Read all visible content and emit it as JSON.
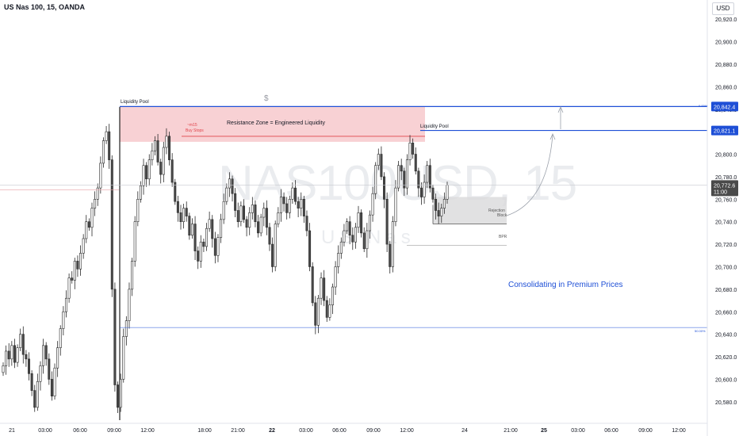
{
  "header": {
    "symbol_title": "US Nas 100, 15, OANDA",
    "currency": "USD"
  },
  "watermark": {
    "main": "NAS100USD, 15",
    "sub": "US Nas"
  },
  "annotations": {
    "liquidity_pool_left": "Liquidity Pool",
    "liquidity_pool_right": "Liquidity Pool",
    "resistance_zone": "Resistance Zone = Engineered Liquidity",
    "dollar_marker": "$",
    "m15_label": "~m15",
    "buy_stops": "Buy Stops",
    "rejection_block_1": "Rejection",
    "rejection_block_2": "Block",
    "bpr": "BPR",
    "consolidating": "Consolidating in Premium Prices",
    "fib_top": "0.00%",
    "fib_mid": "50.00%"
  },
  "colors": {
    "up": "#ffffff",
    "down": "#4a4a4a",
    "wick": "#2a2a2a",
    "zone_fill": "#f7c9cd",
    "level_blue": "#1e4fd6",
    "consolidating_text": "#1e4fd6",
    "price_tag_bg": "#4a4a4a"
  },
  "chart_data": {
    "type": "candlestick",
    "title": "",
    "ylim": [
      20570,
      20930
    ],
    "y_ticks": [
      "20,920.0",
      "20,900.0",
      "20,880.0",
      "20,860.0",
      "20,840.0",
      "20,820.0",
      "20,800.0",
      "20,780.0",
      "20,760.0",
      "20,740.0",
      "20,720.0",
      "20,700.0",
      "20,680.0",
      "20,660.0",
      "20,640.0",
      "20,620.0",
      "20,600.0",
      "20,580.0"
    ],
    "y_tick_values": [
      20920,
      20900,
      20880,
      20860,
      20840,
      20820,
      20800,
      20780,
      20760,
      20740,
      20720,
      20700,
      20680,
      20660,
      20640,
      20620,
      20600,
      20580
    ],
    "x_ticks": [
      "21",
      "03:00",
      "06:00",
      "09:00",
      "12:00",
      "18:00",
      "21:00",
      "22",
      "03:00",
      "06:00",
      "09:00",
      "12:00",
      "24",
      "21:00",
      "25",
      "03:00",
      "06:00",
      "09:00",
      "12:00"
    ],
    "x_tick_bold": [
      false,
      false,
      false,
      false,
      false,
      false,
      false,
      true,
      false,
      false,
      false,
      false,
      false,
      false,
      true,
      false,
      false,
      false,
      false
    ],
    "levels": [
      {
        "label": "20,842.4",
        "value": 20842.4
      },
      {
        "label": "20,821.1",
        "value": 20821.1
      },
      {
        "label": "20,772.6",
        "value": 20772.6,
        "sub": "11:00"
      }
    ],
    "resistance_zone": [
      20811,
      20842.4
    ],
    "fib_50": 20646,
    "rejection_block": [
      20738,
      20762
    ],
    "bpr_levels": [
      20738,
      20719
    ],
    "closes": [
      20612,
      20625,
      20618,
      20630,
      20615,
      20628,
      20640,
      20622,
      20618,
      20605,
      20590,
      20575,
      20598,
      20612,
      20630,
      20618,
      20600,
      20585,
      20610,
      20628,
      20645,
      20660,
      20672,
      20690,
      20688,
      20705,
      20698,
      20712,
      20725,
      20740,
      20735,
      20752,
      20760,
      20770,
      20792,
      20812,
      20820,
      20795,
      20680,
      20595,
      20575,
      20600,
      20638,
      20652,
      20680,
      20705,
      20740,
      20760,
      20772,
      20790,
      20778,
      20795,
      20803,
      20812,
      20793,
      20782,
      20806,
      20816,
      20795,
      20775,
      20758,
      20748,
      20740,
      20752,
      20745,
      20728,
      20738,
      20714,
      20705,
      20722,
      20718,
      20734,
      20742,
      20725,
      20710,
      20726,
      20742,
      20758,
      20770,
      20778,
      20765,
      20750,
      20740,
      20754,
      20742,
      20735,
      20748,
      20755,
      20740,
      20730,
      20744,
      20752,
      20735,
      20720,
      20700,
      20738,
      20748,
      20762,
      20756,
      20748,
      20760,
      20770,
      20758,
      20752,
      20760,
      20745,
      20732,
      20700,
      20668,
      20648,
      20672,
      20690,
      20670,
      20655,
      20666,
      20682,
      20700,
      20712,
      20722,
      20732,
      20740,
      20728,
      20722,
      20735,
      20748,
      20730,
      20716,
      20732,
      20746,
      20765,
      20790,
      20800,
      20780,
      20760,
      20720,
      20700,
      20740,
      20770,
      20790,
      20785,
      20770,
      20795,
      20810,
      20800,
      20785,
      20770,
      20762,
      20775,
      20790,
      20770,
      20760,
      20750,
      20745,
      20752,
      20760,
      20772.6
    ]
  }
}
